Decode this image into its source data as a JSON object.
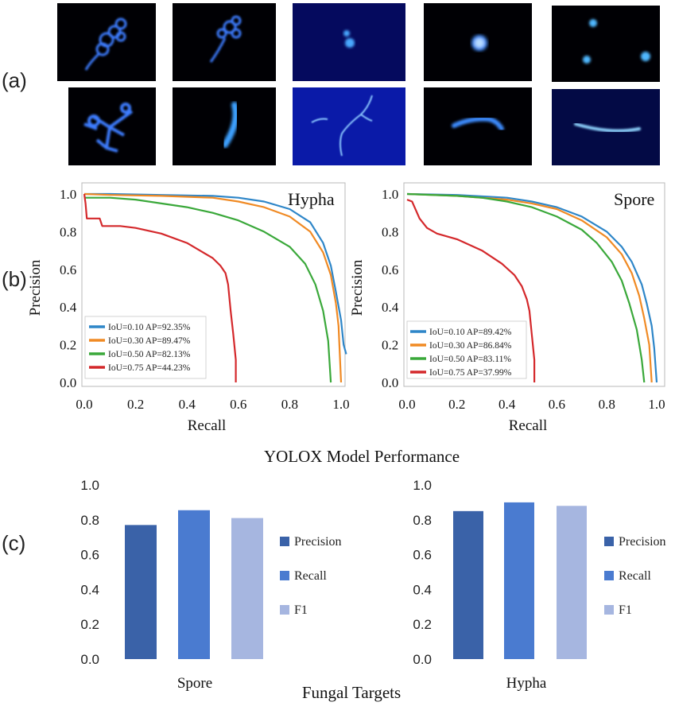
{
  "panel_labels": {
    "a": "(a)",
    "b": "(b)",
    "c": "(c)"
  },
  "micrographs": {
    "top_row": [
      "budding-spore-cluster",
      "budding-spore-with-germ-tube",
      "faint-spore-pair",
      "single-round-spore",
      "three-scattered-spores"
    ],
    "bottom_row": [
      "branched-hypha-cluster",
      "curved-hypha-fragment",
      "long-thin-hypha",
      "short-bent-hypha",
      "elongated-hypha"
    ]
  },
  "colors": {
    "blue": "#2e86c8",
    "orange": "#f08a24",
    "green": "#3aa83a",
    "red": "#d4282b",
    "bar_precision": "#3a62a8",
    "bar_recall": "#4a7bd0",
    "bar_f1": "#a6b6e0",
    "glow": "#3d7dff"
  },
  "chart_data": [
    {
      "id": "pr-hypha",
      "type": "line",
      "title": "Hypha",
      "xlabel": "Recall",
      "ylabel": "Precision",
      "xlim": [
        0,
        1.0
      ],
      "ylim": [
        0,
        1.0
      ],
      "xticks": [
        "0.0",
        "0.2",
        "0.4",
        "0.6",
        "0.8",
        "1.0"
      ],
      "yticks": [
        "0.0",
        "0.2",
        "0.4",
        "0.6",
        "0.8",
        "1.0"
      ],
      "legend_position": "bottom-left",
      "series": [
        {
          "name": "IoU=0.10  AP=92.35%",
          "color": "#2e86c8",
          "x": [
            0,
            0.1,
            0.3,
            0.5,
            0.6,
            0.7,
            0.8,
            0.88,
            0.93,
            0.96,
            0.98,
            1.0,
            1.01,
            1.02
          ],
          "y": [
            1.0,
            1.0,
            0.995,
            0.99,
            0.98,
            0.96,
            0.92,
            0.85,
            0.74,
            0.62,
            0.48,
            0.33,
            0.2,
            0.15
          ]
        },
        {
          "name": "IoU=0.30  AP=89.47%",
          "color": "#f08a24",
          "x": [
            0,
            0.1,
            0.3,
            0.5,
            0.6,
            0.7,
            0.8,
            0.88,
            0.93,
            0.96,
            0.98,
            0.99,
            1.0
          ],
          "y": [
            1.0,
            0.995,
            0.99,
            0.98,
            0.96,
            0.93,
            0.88,
            0.8,
            0.69,
            0.57,
            0.42,
            0.3,
            0.0
          ]
        },
        {
          "name": "IoU=0.50  AP=82.13%",
          "color": "#3aa83a",
          "x": [
            0,
            0.1,
            0.2,
            0.3,
            0.4,
            0.5,
            0.6,
            0.7,
            0.8,
            0.86,
            0.9,
            0.93,
            0.95,
            0.96
          ],
          "y": [
            0.98,
            0.98,
            0.97,
            0.95,
            0.93,
            0.9,
            0.86,
            0.8,
            0.72,
            0.63,
            0.52,
            0.38,
            0.22,
            0.0
          ]
        },
        {
          "name": "IoU=0.75  AP=44.23%",
          "color": "#d4282b",
          "x": [
            0,
            0.005,
            0.01,
            0.06,
            0.07,
            0.14,
            0.2,
            0.3,
            0.4,
            0.45,
            0.5,
            0.53,
            0.55,
            0.56,
            0.57,
            0.58,
            0.59,
            0.59
          ],
          "y": [
            1.0,
            0.95,
            0.87,
            0.87,
            0.83,
            0.83,
            0.82,
            0.79,
            0.74,
            0.7,
            0.66,
            0.62,
            0.58,
            0.52,
            0.38,
            0.26,
            0.12,
            0.0
          ]
        }
      ]
    },
    {
      "id": "pr-spore",
      "type": "line",
      "title": "Spore",
      "xlabel": "Recall",
      "ylabel": "Precision",
      "xlim": [
        0,
        1.0
      ],
      "ylim": [
        0,
        1.0
      ],
      "xticks": [
        "0.0",
        "0.2",
        "0.4",
        "0.6",
        "0.8",
        "1.0"
      ],
      "yticks": [
        "0.0",
        "0.2",
        "0.4",
        "0.6",
        "0.8",
        "1.0"
      ],
      "legend_position": "bottom-left",
      "series": [
        {
          "name": "IoU=0.10  AP=89.42%",
          "color": "#2e86c8",
          "x": [
            0,
            0.2,
            0.4,
            0.5,
            0.6,
            0.7,
            0.8,
            0.86,
            0.9,
            0.94,
            0.96,
            0.98,
            0.99,
            1.0
          ],
          "y": [
            1.0,
            0.995,
            0.98,
            0.96,
            0.93,
            0.88,
            0.8,
            0.72,
            0.64,
            0.52,
            0.42,
            0.3,
            0.18,
            0.0
          ]
        },
        {
          "name": "IoU=0.30  AP=86.84%",
          "color": "#f08a24",
          "x": [
            0,
            0.2,
            0.4,
            0.5,
            0.6,
            0.7,
            0.8,
            0.86,
            0.9,
            0.93,
            0.95,
            0.97,
            0.98
          ],
          "y": [
            1.0,
            0.99,
            0.97,
            0.95,
            0.92,
            0.86,
            0.77,
            0.68,
            0.58,
            0.46,
            0.34,
            0.2,
            0.0
          ]
        },
        {
          "name": "IoU=0.50  AP=83.11%",
          "color": "#3aa83a",
          "x": [
            0,
            0.2,
            0.3,
            0.4,
            0.5,
            0.6,
            0.7,
            0.76,
            0.82,
            0.86,
            0.89,
            0.92,
            0.94,
            0.95
          ],
          "y": [
            1.0,
            0.99,
            0.98,
            0.96,
            0.93,
            0.88,
            0.81,
            0.74,
            0.64,
            0.54,
            0.42,
            0.28,
            0.12,
            0.0
          ]
        },
        {
          "name": "IoU=0.75  AP=37.99%",
          "color": "#d4282b",
          "x": [
            0,
            0.02,
            0.05,
            0.08,
            0.12,
            0.2,
            0.3,
            0.38,
            0.43,
            0.46,
            0.48,
            0.49,
            0.5,
            0.51,
            0.51
          ],
          "y": [
            0.97,
            0.96,
            0.87,
            0.82,
            0.79,
            0.76,
            0.7,
            0.63,
            0.57,
            0.51,
            0.44,
            0.38,
            0.25,
            0.12,
            0.0
          ]
        }
      ]
    },
    {
      "id": "bars-spore",
      "type": "bar",
      "category": "Spore",
      "ylim": [
        0,
        1.0
      ],
      "yticks": [
        "0.0",
        "0.2",
        "0.4",
        "0.6",
        "0.8",
        "1.0"
      ],
      "series": [
        {
          "name": "Precision",
          "value": 0.77,
          "color": "#3a62a8"
        },
        {
          "name": "Recall",
          "value": 0.855,
          "color": "#4a7bd0"
        },
        {
          "name": "F1",
          "value": 0.81,
          "color": "#a6b6e0"
        }
      ],
      "legend_position": "right"
    },
    {
      "id": "bars-hypha",
      "type": "bar",
      "category": "Hypha",
      "ylim": [
        0,
        1.0
      ],
      "yticks": [
        "0.0",
        "0.2",
        "0.4",
        "0.6",
        "0.8",
        "1.0"
      ],
      "series": [
        {
          "name": "Precision",
          "value": 0.85,
          "color": "#3a62a8"
        },
        {
          "name": "Recall",
          "value": 0.9,
          "color": "#4a7bd0"
        },
        {
          "name": "F1",
          "value": 0.88,
          "color": "#a6b6e0"
        }
      ],
      "legend_position": "right"
    }
  ],
  "titles": {
    "pr_section": "YOLOX Model Performance",
    "bar_section": "Fungal Targets"
  }
}
